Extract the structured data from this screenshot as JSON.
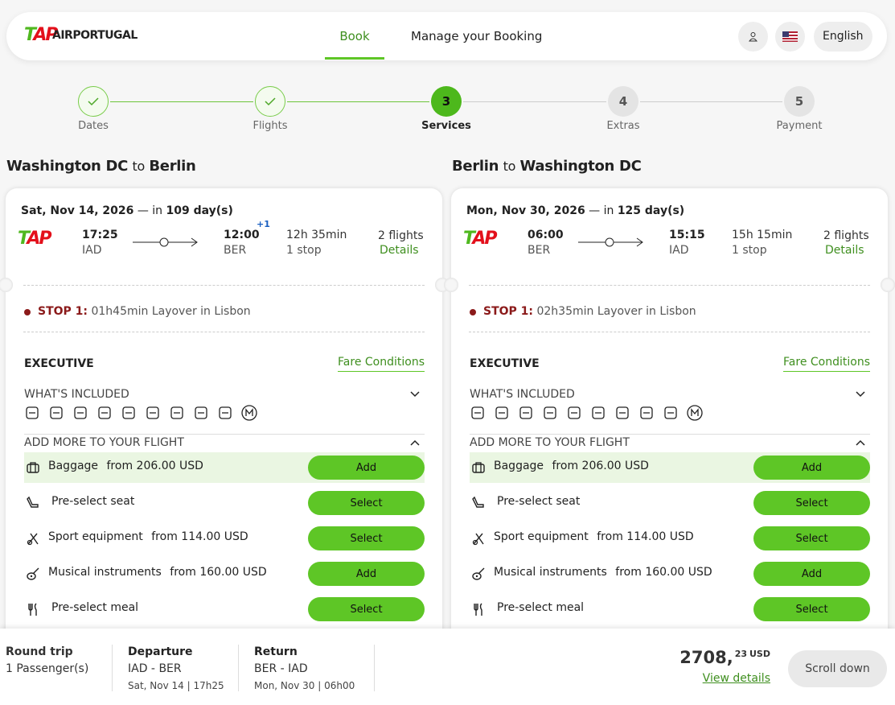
{
  "header": {
    "logo_mark": "TAP",
    "brand": "AIRPORTUGAL",
    "nav": [
      "Book",
      "Manage your Booking"
    ],
    "language": "English"
  },
  "steps": [
    {
      "label": "Dates",
      "state": "done"
    },
    {
      "label": "Flights",
      "state": "done"
    },
    {
      "number": 3,
      "label": "Services",
      "state": "current"
    },
    {
      "number": 4,
      "label": "Extras",
      "state": "upcoming"
    },
    {
      "number": 5,
      "label": "Payment",
      "state": "upcoming"
    }
  ],
  "journeys": [
    {
      "from": "Washington DC",
      "connector": "to",
      "to": "Berlin",
      "date": "Sat, Nov 14, 2026",
      "in": "— in",
      "days": "109 day(s)",
      "dep_time": "17:25",
      "dep_code": "IAD",
      "arr_time": "12:00",
      "day_offset": "+1",
      "arr_code": "BER",
      "duration": "12h 35min",
      "stops": "1 stop",
      "flights": "2 flights",
      "details": "Details",
      "stop_label": "STOP 1:",
      "layover": "01h45min Layover in Lisbon",
      "cabin": "EXECUTIVE",
      "fare_conditions": "Fare Conditions",
      "included": "WHAT'S INCLUDED",
      "add_more": "ADD MORE TO YOUR FLIGHT",
      "services": [
        {
          "name": "Baggage",
          "price": "from 206.00 USD",
          "button": "Add"
        },
        {
          "name": "Pre-select seat",
          "button": "Select"
        },
        {
          "name": "Sport equipment",
          "price": "from 114.00 USD",
          "button": "Select"
        },
        {
          "name": "Musical instruments",
          "price": "from 160.00 USD",
          "button": "Add"
        },
        {
          "name": "Pre-select meal",
          "button": "Select"
        }
      ]
    },
    {
      "from": "Berlin",
      "connector": "to",
      "to": "Washington DC",
      "date": "Mon, Nov 30, 2026",
      "in": "— in",
      "days": "125 day(s)",
      "dep_time": "06:00",
      "dep_code": "BER",
      "arr_time": "15:15",
      "arr_code": "IAD",
      "duration": "15h 15min",
      "stops": "1 stop",
      "flights": "2 flights",
      "details": "Details",
      "stop_label": "STOP 1:",
      "layover": "02h35min Layover in Lisbon",
      "cabin": "EXECUTIVE",
      "fare_conditions": "Fare Conditions",
      "included": "WHAT'S INCLUDED",
      "add_more": "ADD MORE TO YOUR FLIGHT",
      "services": [
        {
          "name": "Baggage",
          "price": "from 206.00 USD",
          "button": "Add"
        },
        {
          "name": "Pre-select seat",
          "button": "Select"
        },
        {
          "name": "Sport equipment",
          "price": "from 114.00 USD",
          "button": "Select"
        },
        {
          "name": "Musical instruments",
          "price": "from 160.00 USD",
          "button": "Add"
        },
        {
          "name": "Pre-select meal",
          "button": "Select"
        }
      ]
    }
  ],
  "footer": {
    "trip": "Round trip",
    "passengers": "1 Passenger(s)",
    "departure_label": "Departure",
    "departure_route": "IAD - BER",
    "departure_date": "Sat, Nov 14 | 17h25",
    "return_label": "Return",
    "return_route": "BER - IAD",
    "return_date": "Mon, Nov 30 | 06h00",
    "price_main": "2708,",
    "price_cents": "23",
    "currency": "USD",
    "view_details": "View details",
    "scroll_down": "Scroll down"
  }
}
